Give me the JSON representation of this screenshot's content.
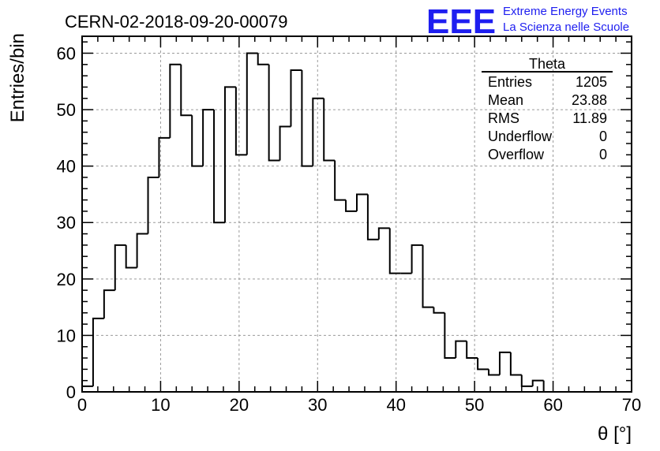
{
  "chart_data": {
    "type": "bar",
    "title": "CERN-02-2018-09-20-00079",
    "xlabel": "θ [°]",
    "ylabel": "Entries/bin",
    "xlim": [
      0,
      70
    ],
    "ylim": [
      0,
      63
    ],
    "xticks": [
      "0",
      "10",
      "20",
      "30",
      "40",
      "50",
      "60",
      "70"
    ],
    "yticks": [
      "0",
      "10",
      "20",
      "30",
      "40",
      "50",
      "60"
    ],
    "grid": true,
    "bin_width": 1.4,
    "bin_edges_start": [
      0,
      1.4,
      2.8,
      4.2,
      5.6,
      7.0,
      8.4,
      9.8,
      11.2,
      12.6,
      14.0,
      15.4,
      16.8,
      18.2,
      19.6,
      21.0,
      22.4,
      23.8,
      25.2,
      26.6,
      28.0,
      29.4,
      30.8,
      32.2,
      33.6,
      35.0,
      36.4,
      37.8,
      39.2,
      40.6,
      42.0,
      43.4,
      44.8,
      46.2,
      47.6,
      49.0,
      50.4,
      51.8,
      53.2,
      54.6,
      56.0,
      57.4,
      58.8
    ],
    "values": [
      1,
      13,
      18,
      26,
      22,
      28,
      38,
      45,
      58,
      49,
      40,
      50,
      30,
      54,
      42,
      60,
      58,
      41,
      47,
      57,
      40,
      52,
      41,
      34,
      32,
      35,
      27,
      29,
      21,
      21,
      26,
      15,
      14,
      6,
      9,
      6,
      4,
      3,
      7,
      3,
      1,
      2,
      0
    ]
  },
  "stats_box": {
    "title": "Theta",
    "rows": [
      {
        "label": "Entries",
        "value": "1205"
      },
      {
        "label": "Mean",
        "value": "23.88"
      },
      {
        "label": "RMS",
        "value": "11.89"
      },
      {
        "label": "Underflow",
        "value": "0"
      },
      {
        "label": "Overflow",
        "value": "0"
      }
    ]
  },
  "logo": {
    "mark": "EEE",
    "line1": "Extreme Energy Events",
    "line2": "La Scienza nelle Scuole"
  },
  "colors": {
    "logo": "#1e1ef0",
    "line": "#000000",
    "grid": "#9a9a9a"
  }
}
